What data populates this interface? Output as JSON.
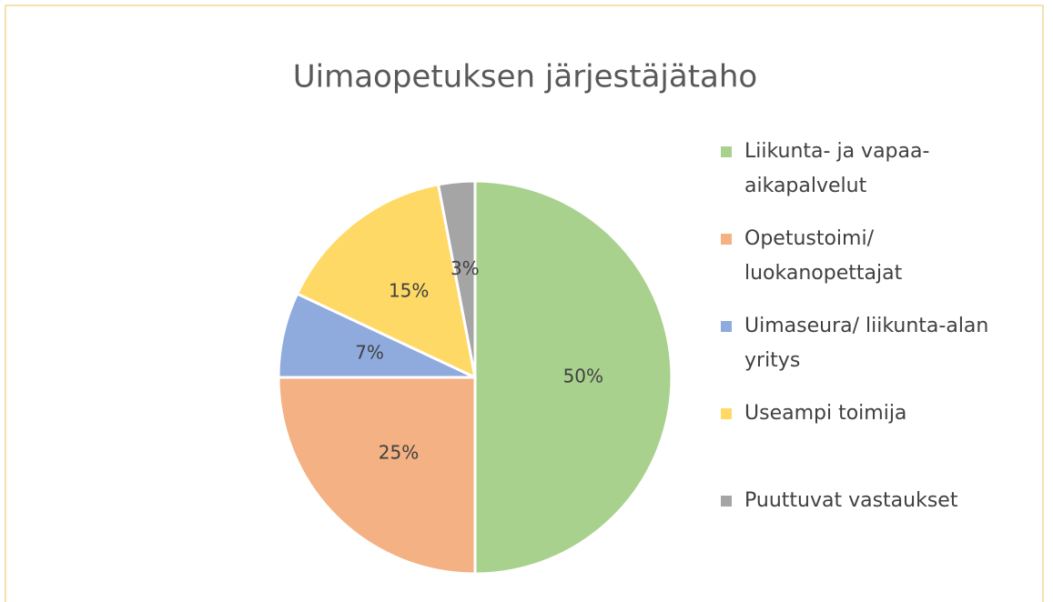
{
  "chart_data": {
    "type": "pie",
    "title": "Uimaopetuksen järjestäjätaho",
    "categories": [
      "Liikunta- ja vapaa-aikapalvelut",
      "Opetustoimi/ luokanopettajat",
      "Uimaseura/ liikunta-alan yritys",
      "Useampi toimija",
      "Puuttuvat vastaukset"
    ],
    "values": [
      50,
      25,
      7,
      15,
      3
    ],
    "value_labels": [
      "50%",
      "25%",
      "7%",
      "15%",
      "3%"
    ],
    "colors": [
      "#a9d18e",
      "#f4b183",
      "#8faadc",
      "#ffd966",
      "#a5a5a5"
    ],
    "legend": "right"
  }
}
